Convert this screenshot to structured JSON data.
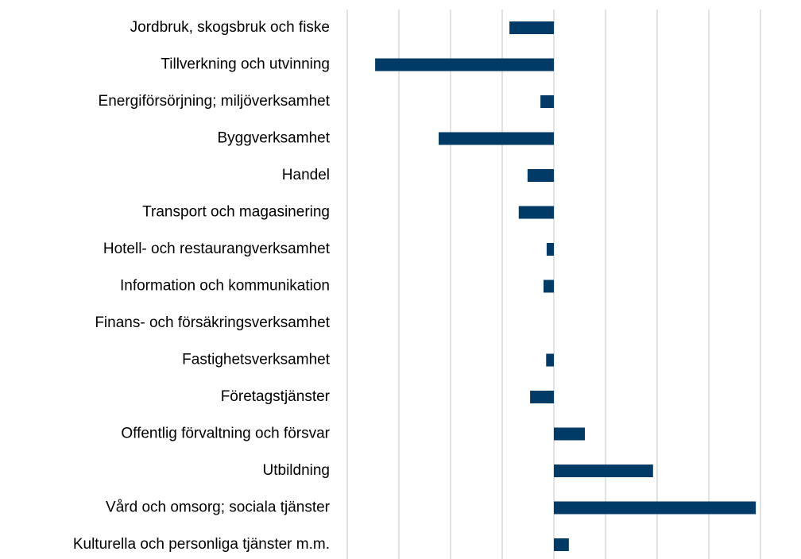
{
  "chart_data": {
    "type": "barh",
    "categories": [
      "Jordbruk, skogsbruk och fiske",
      "Tillverkning och utvinning",
      "Energiförsörjning; miljöverksamhet",
      "Byggverksamhet",
      "Handel",
      "Transport och magasinering",
      "Hotell- och restaurangverksamhet",
      "Information och kommunikation",
      "Finans- och försäkringsverksamhet",
      "Fastighetsverksamhet",
      "Företagstjänster",
      "Offentlig förvaltning och försvar",
      "Utbildning",
      "Vård och omsorg; sociala tjänster",
      "Kulturella och personliga tjänster m.m."
    ],
    "values": [
      -0.86,
      -3.46,
      -0.26,
      -2.23,
      -0.51,
      -0.68,
      -0.14,
      -0.2,
      0,
      -0.15,
      -0.46,
      0.6,
      1.92,
      3.91,
      0.29
    ],
    "color": "#003b68",
    "xlim": [
      -4,
      4
    ],
    "xticks": [
      -4,
      -3,
      -2,
      -1,
      0,
      1,
      2,
      3,
      4
    ],
    "grid": true
  }
}
